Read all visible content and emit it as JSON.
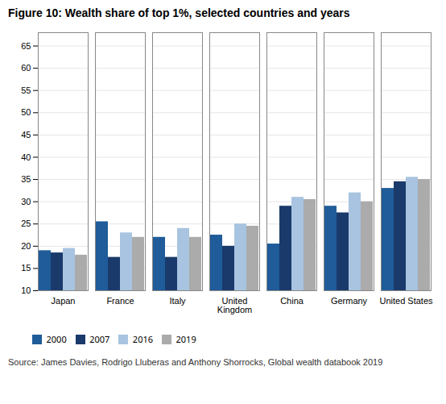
{
  "chart_data": {
    "type": "bar",
    "title": "Figure 10: Wealth share of top 1%, selected countries and years",
    "source": "Source: James Davies, Rodrigo Lluberas and Anthony Shorrocks, Global wealth databook 2019",
    "categories": [
      "Japan",
      "France",
      "Italy",
      "United\nKingdom",
      "China",
      "Germany",
      "United States"
    ],
    "series": [
      {
        "name": "2000",
        "color": "#1F5C99",
        "values": [
          19.0,
          25.5,
          22.0,
          22.5,
          20.5,
          29.0,
          33.0
        ]
      },
      {
        "name": "2007",
        "color": "#1A3A6B",
        "values": [
          18.5,
          17.5,
          17.5,
          20.0,
          29.0,
          27.5,
          34.5
        ]
      },
      {
        "name": "2016",
        "color": "#A8C4E0",
        "values": [
          19.5,
          23.0,
          24.0,
          25.0,
          31.0,
          32.0,
          35.5
        ]
      },
      {
        "name": "2019",
        "color": "#ABABAB",
        "values": [
          18.0,
          22.0,
          22.0,
          24.5,
          30.5,
          30.0,
          35.0
        ]
      }
    ],
    "ylim": [
      10,
      68
    ],
    "yticks": [
      10,
      15,
      20,
      25,
      30,
      35,
      40,
      45,
      50,
      55,
      60,
      65
    ],
    "grid": true,
    "legend": "bottom"
  }
}
